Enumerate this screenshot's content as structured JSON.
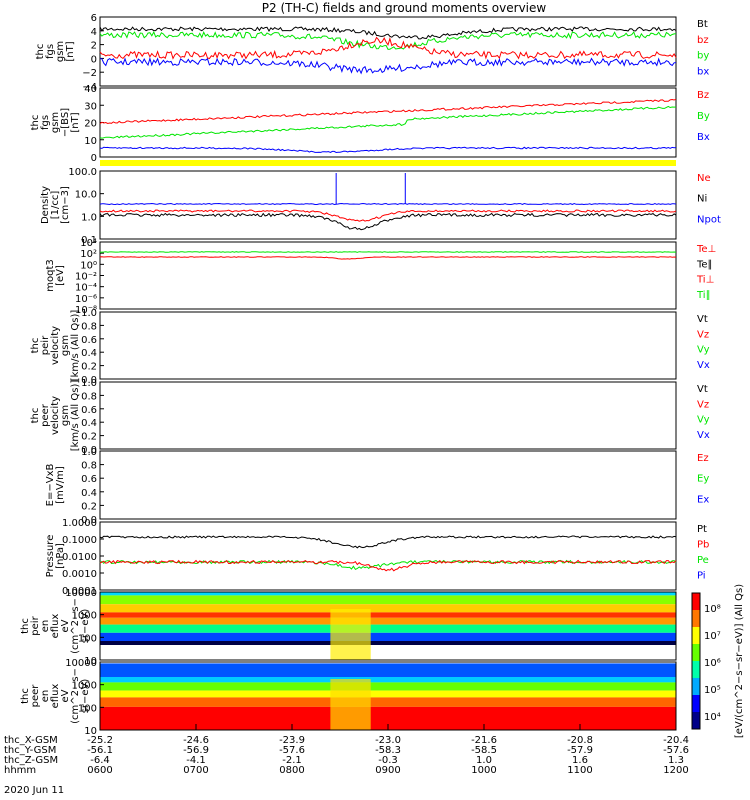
{
  "title": "P2 (TH-C) fields and ground moments overview",
  "colors": {
    "black": "#000000",
    "red": "#ff0000",
    "green": "#00e600",
    "blue": "#0000ff",
    "yellow": "#ffff00"
  },
  "chart_data": {
    "type": "line",
    "time_axis": {
      "hhmm": [
        "0600",
        "0700",
        "0800",
        "0900",
        "1000",
        "1100",
        "1200"
      ],
      "x_gsm": [
        "-25.2",
        "-24.6",
        "-23.9",
        "-23.0",
        "-21.6",
        "-20.8",
        "-20.4"
      ],
      "y_gsm": [
        "-56.1",
        "-56.9",
        "-57.6",
        "-58.3",
        "-58.5",
        "-57.9",
        "-57.6"
      ],
      "z_gsm": [
        "-6.4",
        "-4.1",
        "-2.1",
        "-0.3",
        "1.0",
        "1.6",
        "1.3"
      ],
      "row_labels": [
        "thc_X-GSM",
        "thc_Y-GSM",
        "thc_Z-GSM",
        "hhmm"
      ],
      "date": "2020 Jun 11"
    },
    "panels": [
      {
        "id": "fgs",
        "ylabel": [
          "thc",
          "fgs",
          "gsm",
          "[nT]"
        ],
        "yticks": [
          "6",
          "4",
          "2",
          "0",
          "−2",
          "−4"
        ],
        "legend": [
          {
            "t": "Bt",
            "c": "black"
          },
          {
            "t": "bz",
            "c": "red"
          },
          {
            "t": "by",
            "c": "green"
          },
          {
            "t": "bx",
            "c": "blue"
          }
        ]
      },
      {
        "id": "fgs_lm",
        "ylabel": [
          "thc",
          "fgs",
          "gsm",
          "−[BS]",
          "[nT]"
        ],
        "yticks": [
          "40",
          "30",
          "20",
          "10",
          "0"
        ],
        "legend": [
          {
            "t": "Bz",
            "c": "red"
          },
          {
            "t": "By",
            "c": "green"
          },
          {
            "t": "Bx",
            "c": "blue"
          }
        ]
      },
      {
        "id": "density",
        "ylabel": [
          "Density",
          "[1/cc]",
          "[cm−3]"
        ],
        "yticks": [
          "100.0",
          "10.0",
          "1.0",
          "0.1"
        ],
        "legend": [
          {
            "t": "Ne",
            "c": "red"
          },
          {
            "t": "Ni",
            "c": "black"
          },
          {
            "t": "Npot",
            "c": "blue"
          }
        ]
      },
      {
        "id": "temp",
        "ylabel": [
          "moqt3",
          "[eV]"
        ],
        "yticks": [
          "10⁴",
          "10²",
          "10⁰",
          "10⁻²",
          "10⁻⁴",
          "10⁻⁶",
          "10⁻⁸"
        ],
        "legend": [
          {
            "t": "Te⊥",
            "c": "red"
          },
          {
            "t": "Te∥",
            "c": "black"
          },
          {
            "t": "Ti⊥",
            "c": "red"
          },
          {
            "t": "Ti∥",
            "c": "green"
          }
        ]
      },
      {
        "id": "vi",
        "ylabel": [
          "thc",
          "peir",
          "velocity",
          "gsm",
          "[km/s (All Qs)]"
        ],
        "yticks": [
          "1.0",
          "0.8",
          "0.6",
          "0.4",
          "0.2",
          "0.0"
        ],
        "legend": [
          {
            "t": "Vt",
            "c": "black"
          },
          {
            "t": "Vz",
            "c": "red"
          },
          {
            "t": "Vy",
            "c": "green"
          },
          {
            "t": "Vx",
            "c": "blue"
          }
        ]
      },
      {
        "id": "ve",
        "ylabel": [
          "thc",
          "peer",
          "velocity",
          "gsm",
          "[km/s (All Qs)]"
        ],
        "yticks": [
          "1.0",
          "0.8",
          "0.6",
          "0.4",
          "0.2",
          "0.0"
        ],
        "legend": [
          {
            "t": "Vt",
            "c": "black"
          },
          {
            "t": "Vz",
            "c": "red"
          },
          {
            "t": "Vy",
            "c": "green"
          },
          {
            "t": "Vx",
            "c": "blue"
          }
        ]
      },
      {
        "id": "exb",
        "ylabel": [
          "E=−VxB",
          "[mV/m]"
        ],
        "yticks": [
          "1.0",
          "0.8",
          "0.6",
          "0.4",
          "0.2",
          "0.0"
        ],
        "legend": [
          {
            "t": "Ez",
            "c": "red"
          },
          {
            "t": "Ey",
            "c": "green"
          },
          {
            "t": "Ex",
            "c": "blue"
          }
        ]
      },
      {
        "id": "pressure",
        "ylabel": [
          "Pressure",
          "[nPa]"
        ],
        "yticks": [
          "1.0000",
          "0.1000",
          "0.0100",
          "0.0010",
          "0.0001"
        ],
        "legend": [
          {
            "t": "Pt",
            "c": "black"
          },
          {
            "t": "Pb",
            "c": "red"
          },
          {
            "t": "Pe",
            "c": "green"
          },
          {
            "t": "Pi",
            "c": "blue"
          }
        ]
      },
      {
        "id": "ispec",
        "ylabel": [
          "thc",
          "peir",
          "en",
          "eflux",
          "eV",
          "(cm^2−s−",
          "sr−eV)"
        ],
        "yticks": [
          "10000",
          "1000",
          "100",
          "10"
        ]
      },
      {
        "id": "espec",
        "ylabel": [
          "thc",
          "peer",
          "en",
          "eflux",
          "eV",
          "(cm^2−s−",
          "sr−eV)"
        ],
        "yticks": [
          "10000",
          "1000",
          "100",
          "10"
        ]
      }
    ],
    "colorbar": {
      "ticks": [
        "10⁸",
        "10⁷",
        "10⁶",
        "10⁵",
        "10⁴"
      ],
      "label": "[eV/(cm^2−s−sr−eV)] (All Qs)"
    }
  }
}
